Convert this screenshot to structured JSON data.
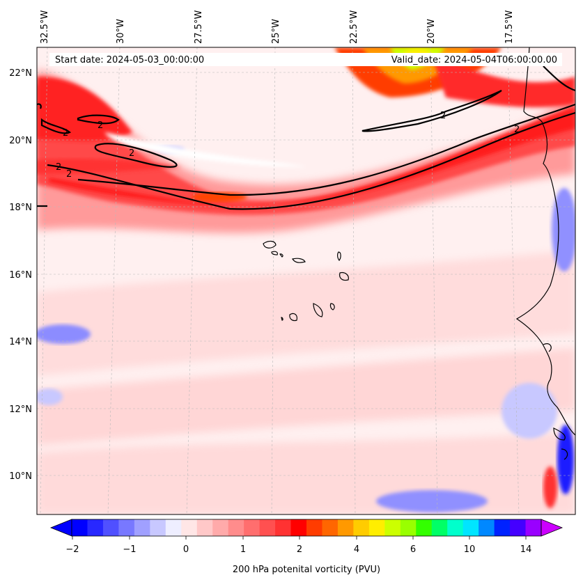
{
  "map": {
    "start_label": "Start date: 2024-05-03_00:00:00",
    "valid_label": "Valid_date: 2024-05-04T06:00:00.00",
    "lon_labels": [
      "32.5°W",
      "30°W",
      "27.5°W",
      "25°W",
      "22.5°W",
      "20°W",
      "17.5°W"
    ],
    "lat_labels": [
      "22°N",
      "20°N",
      "18°N",
      "16°N",
      "14°N",
      "12°N",
      "10°N"
    ],
    "contour_value": "2",
    "contour_label_count": 7
  },
  "colorbar": {
    "label": "200 hPa potenital vorticity (PVU)",
    "tick_labels": [
      "−2",
      "−1",
      "0",
      "1",
      "2",
      "4",
      "6",
      "10",
      "14"
    ],
    "colors": [
      "#0000ff",
      "#2828ff",
      "#5050ff",
      "#7878ff",
      "#a0a0ff",
      "#c8c8ff",
      "#eeeeff",
      "#ffe6e6",
      "#ffc8c8",
      "#ffaaaa",
      "#ff8c8c",
      "#ff6e6e",
      "#ff5050",
      "#ff3232",
      "#ff0000",
      "#ff3c00",
      "#ff6600",
      "#ff9900",
      "#ffcc00",
      "#ffee00",
      "#ccff00",
      "#99ff00",
      "#33ff00",
      "#00ff66",
      "#00ffcc",
      "#00e5ff",
      "#0088ff",
      "#0022ff",
      "#4400ff",
      "#9900ff"
    ]
  }
}
